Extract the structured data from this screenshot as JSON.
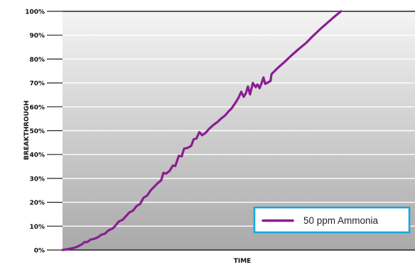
{
  "chart_data": {
    "type": "line",
    "title": "",
    "xlabel": "TIME",
    "ylabel": "BREAKTHROUGH",
    "ylim": [
      0,
      100
    ],
    "xlim": [
      0,
      100
    ],
    "y_ticks": [
      "0%",
      "10%",
      "20%",
      "30%",
      "40%",
      "50%",
      "60%",
      "70%",
      "80%",
      "90%",
      "100%"
    ],
    "grid": true,
    "background": "vertical gradient, light grey at top to darker grey at bottom",
    "legend_position": "bottom-right",
    "series": [
      {
        "name": "50 ppm Ammonia",
        "color": "#8a1e91",
        "points": [
          [
            0,
            0
          ],
          [
            2,
            0.5
          ],
          [
            3.5,
            1.0
          ],
          [
            4.5,
            1.6
          ],
          [
            5.5,
            2.4
          ],
          [
            6.3,
            3.4
          ],
          [
            7.0,
            3.3
          ],
          [
            8.0,
            4.4
          ],
          [
            9.0,
            4.7
          ],
          [
            10.0,
            5.3
          ],
          [
            11.0,
            6.4
          ],
          [
            12.0,
            6.8
          ],
          [
            13.0,
            8.2
          ],
          [
            14.2,
            9.0
          ],
          [
            15.0,
            10.2
          ],
          [
            16.0,
            12.0
          ],
          [
            17.0,
            12.6
          ],
          [
            18.0,
            14.2
          ],
          [
            19.0,
            15.8
          ],
          [
            20.0,
            16.5
          ],
          [
            21.0,
            18.4
          ],
          [
            22.0,
            19.3
          ],
          [
            23.0,
            21.9
          ],
          [
            24.0,
            22.8
          ],
          [
            25.0,
            25.0
          ],
          [
            26.0,
            26.5
          ],
          [
            27.0,
            28.0
          ],
          [
            28.0,
            29.2
          ],
          [
            28.6,
            32.3
          ],
          [
            29.4,
            32.0
          ],
          [
            30.4,
            33.2
          ],
          [
            31.3,
            35.4
          ],
          [
            32.0,
            35.2
          ],
          [
            33.0,
            39.5
          ],
          [
            33.8,
            39.2
          ],
          [
            34.5,
            42.5
          ],
          [
            35.5,
            42.8
          ],
          [
            36.5,
            43.6
          ],
          [
            37.2,
            46.4
          ],
          [
            38.0,
            46.7
          ],
          [
            38.8,
            49.4
          ],
          [
            39.6,
            48.1
          ],
          [
            40.6,
            49.1
          ],
          [
            41.6,
            50.8
          ],
          [
            42.8,
            52.4
          ],
          [
            44.0,
            53.7
          ],
          [
            45.0,
            55.1
          ],
          [
            46.2,
            56.5
          ],
          [
            47.0,
            57.9
          ],
          [
            48.0,
            59.4
          ],
          [
            49.2,
            62.0
          ],
          [
            50.0,
            64.0
          ],
          [
            50.7,
            66.3
          ],
          [
            51.4,
            64.2
          ],
          [
            52.0,
            65.6
          ],
          [
            52.6,
            68.5
          ],
          [
            53.2,
            65.2
          ],
          [
            54.0,
            70.0
          ],
          [
            54.8,
            68.2
          ],
          [
            55.3,
            69.4
          ],
          [
            55.9,
            67.8
          ],
          [
            56.5,
            70.0
          ],
          [
            57.0,
            72.3
          ],
          [
            57.5,
            69.6
          ],
          [
            58.3,
            70.2
          ],
          [
            59.0,
            70.8
          ],
          [
            59.3,
            73.7
          ],
          [
            61.0,
            76.2
          ],
          [
            63.0,
            78.8
          ],
          [
            65.0,
            81.6
          ],
          [
            67.0,
            84.2
          ],
          [
            69.0,
            86.6
          ],
          [
            71.0,
            89.6
          ],
          [
            73.0,
            92.4
          ],
          [
            75.0,
            95.0
          ],
          [
            77.0,
            97.6
          ],
          [
            78.0,
            98.8
          ],
          [
            79.0,
            100
          ]
        ]
      }
    ]
  }
}
